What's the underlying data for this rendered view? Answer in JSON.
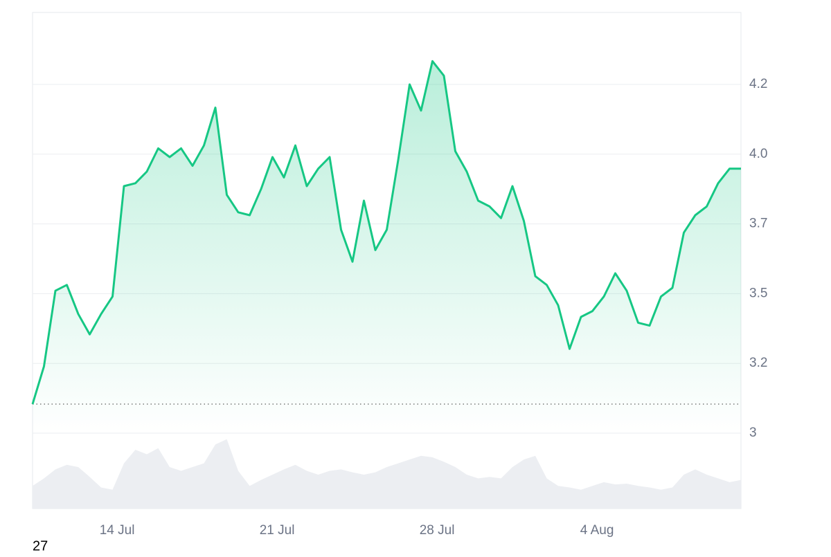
{
  "chart_data": {
    "type": "line",
    "x": [
      10.3,
      10.8,
      11.3,
      11.8,
      12.3,
      12.8,
      13.3,
      13.8,
      14.3,
      14.8,
      15.3,
      15.8,
      16.3,
      16.8,
      17.3,
      17.8,
      18.3,
      18.8,
      19.3,
      19.8,
      20.3,
      20.8,
      21.3,
      21.8,
      22.3,
      22.8,
      23.3,
      23.8,
      24.3,
      24.8,
      25.3,
      25.8,
      26.3,
      26.8,
      27.3,
      27.8,
      28.3,
      28.8,
      29.3,
      29.8,
      30.3,
      30.8,
      31.3,
      31.8,
      32.3,
      32.8,
      33.3,
      33.8,
      34.3,
      34.8,
      35.3,
      35.8,
      36.3,
      36.8,
      37.3,
      37.8,
      38.3,
      38.8,
      39.3,
      39.8,
      40.3,
      40.8,
      41.3
    ],
    "series": [
      {
        "color": "#16c784",
        "values": [
          3.1,
          3.23,
          3.49,
          3.51,
          3.41,
          3.34,
          3.41,
          3.47,
          3.85,
          3.86,
          3.9,
          3.98,
          3.95,
          3.98,
          3.92,
          3.99,
          4.12,
          3.82,
          3.76,
          3.75,
          3.84,
          3.95,
          3.88,
          3.99,
          3.85,
          3.91,
          3.95,
          3.7,
          3.59,
          3.8,
          3.63,
          3.7,
          3.94,
          4.2,
          4.11,
          4.28,
          4.23,
          3.97,
          3.9,
          3.8,
          3.78,
          3.74,
          3.85,
          3.73,
          3.54,
          3.51,
          3.44,
          3.29,
          3.4,
          3.42,
          3.47,
          3.55,
          3.49,
          3.38,
          3.37,
          3.47,
          3.5,
          3.69,
          3.75,
          3.78,
          3.86,
          3.91,
          3.91
        ]
      }
    ],
    "volume": {
      "color": "#eceef2",
      "ylim": [
        0,
        100
      ],
      "values": [
        30,
        40,
        52,
        58,
        55,
        42,
        28,
        25,
        60,
        78,
        72,
        80,
        55,
        50,
        55,
        60,
        85,
        92,
        50,
        30,
        38,
        45,
        52,
        58,
        50,
        45,
        50,
        52,
        48,
        45,
        48,
        55,
        60,
        65,
        70,
        68,
        62,
        55,
        45,
        40,
        42,
        40,
        55,
        65,
        70,
        40,
        30,
        28,
        25,
        30,
        35,
        32,
        33,
        30,
        28,
        25,
        28,
        45,
        52,
        45,
        40,
        35,
        38
      ]
    },
    "baseline": 3.1,
    "xlim": [
      10.3,
      41.3
    ],
    "xticks": [
      {
        "value": 14,
        "label": "14 Jul"
      },
      {
        "value": 21,
        "label": "21 Jul"
      },
      {
        "value": 28,
        "label": "28 Jul"
      },
      {
        "value": 35,
        "label": "4 Aug"
      }
    ],
    "ylim": [
      2.7405,
      4.4476
    ],
    "yticks": [
      3.0,
      {
        "value": 3.24,
        "label": "3.2"
      },
      {
        "value": 3.48,
        "label": "3.5"
      },
      {
        "value": 3.72,
        "label": "3.7"
      },
      {
        "value": 3.96,
        "label": "4.0"
      },
      4.2
    ],
    "grid": true
  },
  "footer_label": "27"
}
